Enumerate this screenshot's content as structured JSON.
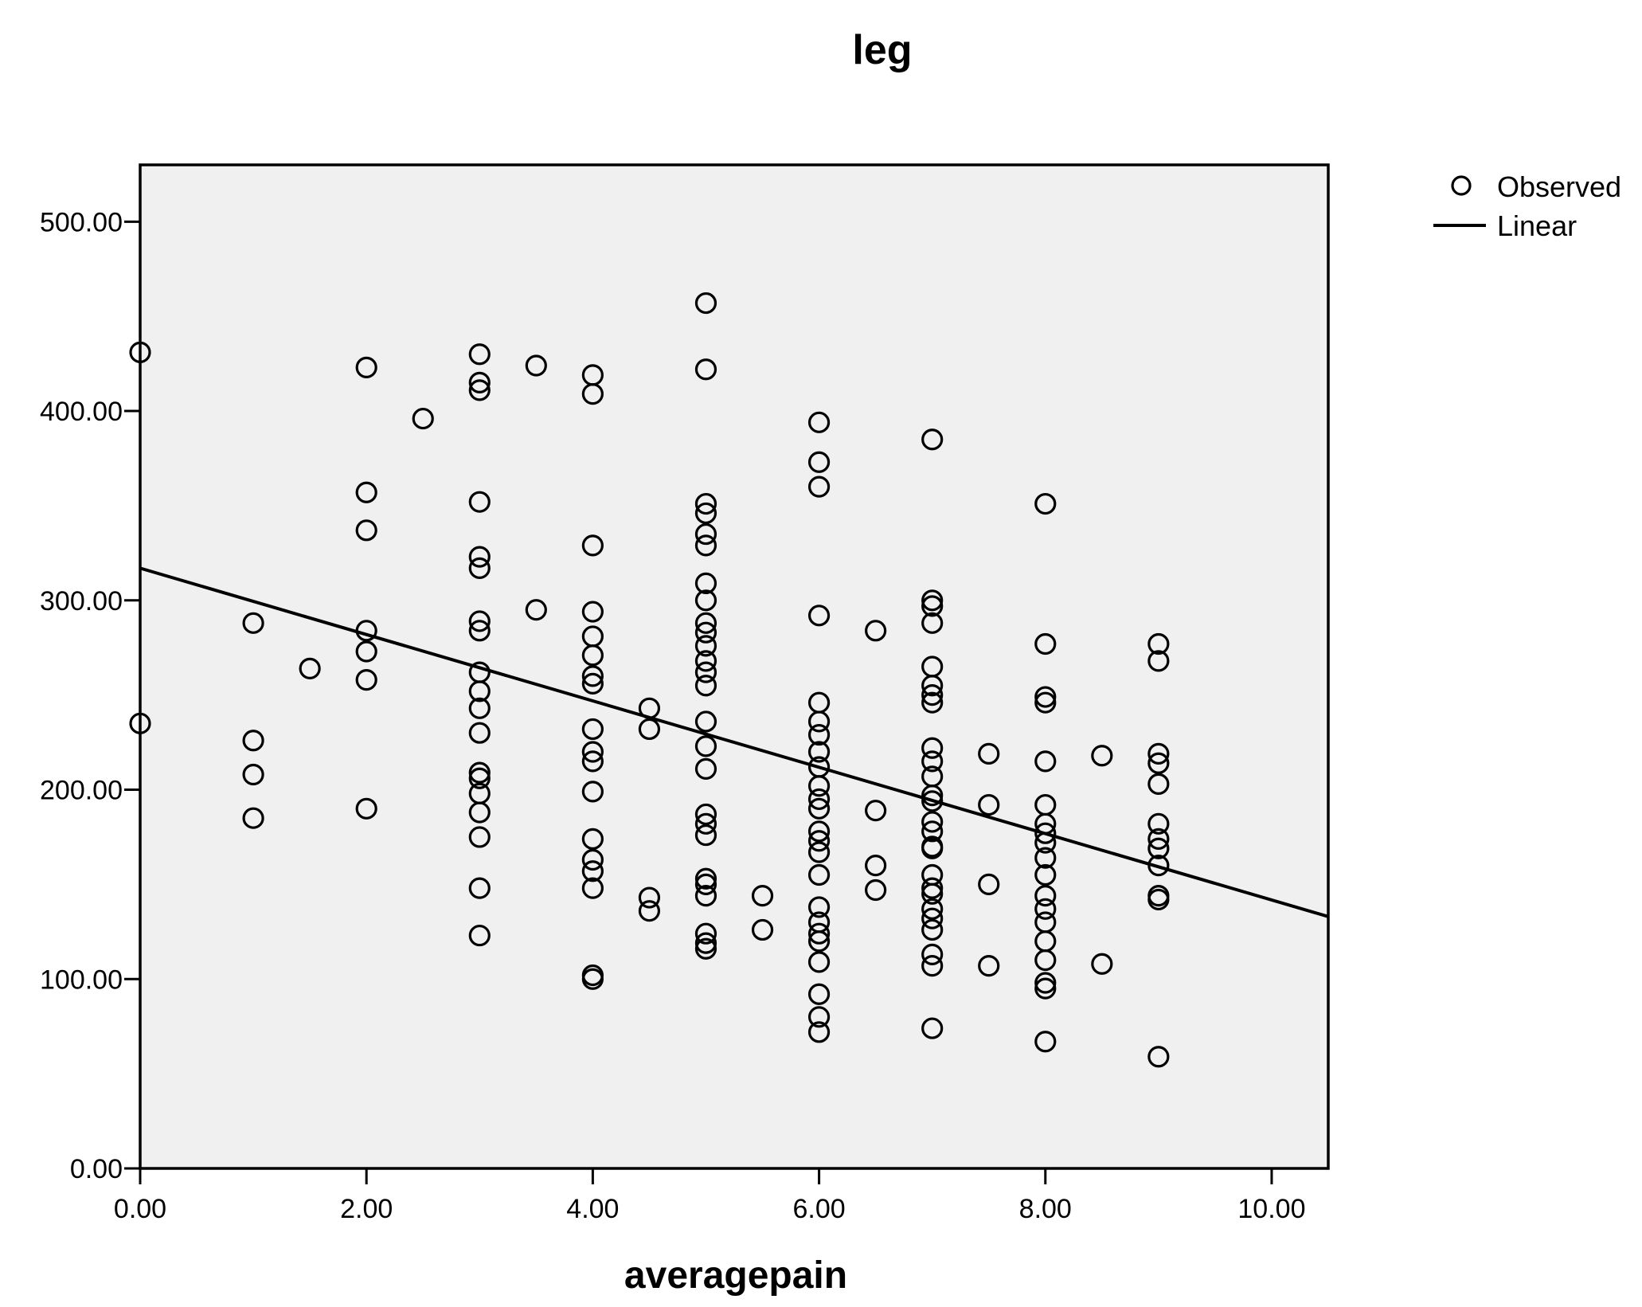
{
  "chart_data": {
    "type": "scatter",
    "title": "leg",
    "xlabel": "averagepain",
    "ylabel": "",
    "xlim": [
      0,
      10.5
    ],
    "ylim": [
      0,
      530
    ],
    "x_ticks": [
      "0.00",
      "2.00",
      "4.00",
      "6.00",
      "8.00",
      "10.00"
    ],
    "y_ticks": [
      "0.00",
      "100.00",
      "200.00",
      "300.00",
      "400.00",
      "500.00"
    ],
    "plot_background": "#f0f0f0",
    "grid": false,
    "legend": {
      "placement": "top-right, outside plot",
      "entries": [
        {
          "label": "Observed",
          "symbol": "open-circle"
        },
        {
          "label": "Linear",
          "symbol": "line"
        }
      ]
    },
    "series": [
      {
        "name": "Observed",
        "points": [
          [
            0,
            431
          ],
          [
            0,
            235
          ],
          [
            1,
            288
          ],
          [
            1,
            226
          ],
          [
            1,
            208
          ],
          [
            1,
            185
          ],
          [
            1.5,
            264
          ],
          [
            2,
            423
          ],
          [
            2,
            357
          ],
          [
            2,
            337
          ],
          [
            2,
            284
          ],
          [
            2,
            273
          ],
          [
            2,
            258
          ],
          [
            2,
            190
          ],
          [
            2.5,
            396
          ],
          [
            3,
            430
          ],
          [
            3,
            415
          ],
          [
            3,
            411
          ],
          [
            3,
            352
          ],
          [
            3,
            323
          ],
          [
            3,
            317
          ],
          [
            3,
            289
          ],
          [
            3,
            284
          ],
          [
            3,
            262
          ],
          [
            3,
            252
          ],
          [
            3,
            243
          ],
          [
            3,
            230
          ],
          [
            3,
            209
          ],
          [
            3,
            206
          ],
          [
            3,
            198
          ],
          [
            3,
            188
          ],
          [
            3,
            175
          ],
          [
            3,
            148
          ],
          [
            3,
            123
          ],
          [
            3.5,
            424
          ],
          [
            3.5,
            295
          ],
          [
            4,
            419
          ],
          [
            4,
            409
          ],
          [
            4,
            329
          ],
          [
            4,
            294
          ],
          [
            4,
            281
          ],
          [
            4,
            271
          ],
          [
            4,
            260
          ],
          [
            4,
            256
          ],
          [
            4,
            232
          ],
          [
            4,
            220
          ],
          [
            4,
            215
          ],
          [
            4,
            199
          ],
          [
            4,
            174
          ],
          [
            4,
            163
          ],
          [
            4,
            157
          ],
          [
            4,
            148
          ],
          [
            4,
            102
          ],
          [
            4,
            100
          ],
          [
            4.5,
            243
          ],
          [
            4.5,
            232
          ],
          [
            4.5,
            143
          ],
          [
            4.5,
            136
          ],
          [
            5,
            457
          ],
          [
            5,
            422
          ],
          [
            5,
            351
          ],
          [
            5,
            346
          ],
          [
            5,
            335
          ],
          [
            5,
            329
          ],
          [
            5,
            309
          ],
          [
            5,
            300
          ],
          [
            5,
            288
          ],
          [
            5,
            283
          ],
          [
            5,
            276
          ],
          [
            5,
            268
          ],
          [
            5,
            262
          ],
          [
            5,
            255
          ],
          [
            5,
            236
          ],
          [
            5,
            223
          ],
          [
            5,
            211
          ],
          [
            5,
            187
          ],
          [
            5,
            182
          ],
          [
            5,
            176
          ],
          [
            5,
            153
          ],
          [
            5,
            150
          ],
          [
            5,
            144
          ],
          [
            5,
            124
          ],
          [
            5,
            119
          ],
          [
            5,
            116
          ],
          [
            5.5,
            144
          ],
          [
            5.5,
            126
          ],
          [
            6,
            394
          ],
          [
            6,
            373
          ],
          [
            6,
            360
          ],
          [
            6,
            292
          ],
          [
            6,
            246
          ],
          [
            6,
            236
          ],
          [
            6,
            229
          ],
          [
            6,
            220
          ],
          [
            6,
            212
          ],
          [
            6,
            202
          ],
          [
            6,
            195
          ],
          [
            6,
            190
          ],
          [
            6,
            178
          ],
          [
            6,
            173
          ],
          [
            6,
            167
          ],
          [
            6,
            155
          ],
          [
            6,
            138
          ],
          [
            6,
            130
          ],
          [
            6,
            124
          ],
          [
            6,
            120
          ],
          [
            6,
            109
          ],
          [
            6,
            92
          ],
          [
            6,
            80
          ],
          [
            6,
            72
          ],
          [
            6.5,
            284
          ],
          [
            6.5,
            189
          ],
          [
            6.5,
            160
          ],
          [
            6.5,
            147
          ],
          [
            7,
            385
          ],
          [
            7,
            300
          ],
          [
            7,
            297
          ],
          [
            7,
            288
          ],
          [
            7,
            265
          ],
          [
            7,
            255
          ],
          [
            7,
            250
          ],
          [
            7,
            246
          ],
          [
            7,
            222
          ],
          [
            7,
            215
          ],
          [
            7,
            207
          ],
          [
            7,
            197
          ],
          [
            7,
            194
          ],
          [
            7,
            183
          ],
          [
            7,
            178
          ],
          [
            7,
            170
          ],
          [
            7,
            169
          ],
          [
            7,
            155
          ],
          [
            7,
            148
          ],
          [
            7,
            145
          ],
          [
            7,
            137
          ],
          [
            7,
            132
          ],
          [
            7,
            126
          ],
          [
            7,
            113
          ],
          [
            7,
            107
          ],
          [
            7,
            74
          ],
          [
            7.5,
            219
          ],
          [
            7.5,
            192
          ],
          [
            7.5,
            150
          ],
          [
            7.5,
            107
          ],
          [
            8,
            351
          ],
          [
            8,
            277
          ],
          [
            8,
            249
          ],
          [
            8,
            246
          ],
          [
            8,
            215
          ],
          [
            8,
            192
          ],
          [
            8,
            182
          ],
          [
            8,
            177
          ],
          [
            8,
            172
          ],
          [
            8,
            164
          ],
          [
            8,
            155
          ],
          [
            8,
            144
          ],
          [
            8,
            137
          ],
          [
            8,
            130
          ],
          [
            8,
            120
          ],
          [
            8,
            110
          ],
          [
            8,
            98
          ],
          [
            8,
            95
          ],
          [
            8,
            67
          ],
          [
            8.5,
            218
          ],
          [
            8.5,
            108
          ],
          [
            9,
            277
          ],
          [
            9,
            268
          ],
          [
            9,
            219
          ],
          [
            9,
            214
          ],
          [
            9,
            203
          ],
          [
            9,
            182
          ],
          [
            9,
            174
          ],
          [
            9,
            169
          ],
          [
            9,
            160
          ],
          [
            9,
            144
          ],
          [
            9,
            142
          ],
          [
            9,
            59
          ]
        ]
      },
      {
        "name": "Linear",
        "type": "line",
        "x": [
          0,
          10.5
        ],
        "y": [
          317,
          133
        ]
      }
    ]
  }
}
